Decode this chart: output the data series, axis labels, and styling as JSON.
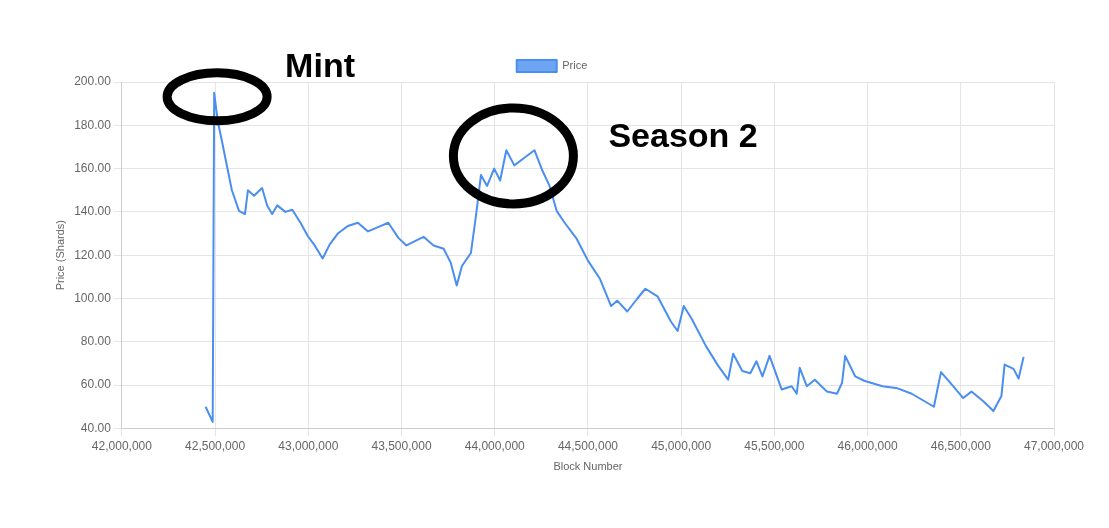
{
  "chart_data": {
    "type": "line",
    "xlabel": "Block Number",
    "ylabel": "Price (Shards)",
    "xlim": [
      42000000,
      47000000
    ],
    "xticks": [
      {
        "value": 42000000,
        "label": "42,000,000"
      },
      {
        "value": 42500000,
        "label": "42,500,000"
      },
      {
        "value": 43000000,
        "label": "43,000,000"
      },
      {
        "value": 43500000,
        "label": "43,500,000"
      },
      {
        "value": 44000000,
        "label": "44,000,000"
      },
      {
        "value": 44500000,
        "label": "44,500,000"
      },
      {
        "value": 45000000,
        "label": "45,000,000"
      },
      {
        "value": 45500000,
        "label": "45,500,000"
      },
      {
        "value": 46000000,
        "label": "46,000,000"
      },
      {
        "value": 46500000,
        "label": "46,500,000"
      },
      {
        "value": 47000000,
        "label": "47,000,000"
      }
    ],
    "ylim": [
      40,
      200
    ],
    "yticks": [
      {
        "value": 40,
        "label": "40.00"
      },
      {
        "value": 60,
        "label": "60.00"
      },
      {
        "value": 80,
        "label": "80.00"
      },
      {
        "value": 100,
        "label": "100.00"
      },
      {
        "value": 120,
        "label": "120.00"
      },
      {
        "value": 140,
        "label": "140.00"
      },
      {
        "value": 160,
        "label": "160.00"
      },
      {
        "value": 180,
        "label": "180.00"
      },
      {
        "value": 200,
        "label": "200.00"
      }
    ],
    "grid": true,
    "legend": "top",
    "marker": "none",
    "line_style": "solid",
    "annotations": [
      {
        "text": "Mint",
        "x": 42500000,
        "y": 195
      },
      {
        "text": "Season 2",
        "x": 44100000,
        "y": 164
      }
    ],
    "series": [
      {
        "name": "Price",
        "color": "#4a8ff0",
        "x": [
          42449000,
          42487000,
          42495000,
          42514000,
          42536000,
          42557000,
          42590000,
          42628000,
          42660000,
          42676000,
          42709000,
          42752000,
          42779000,
          42806000,
          42833000,
          42877000,
          42914000,
          42958000,
          42996000,
          43034000,
          43077000,
          43115000,
          43158000,
          43212000,
          43266000,
          43320000,
          43374000,
          43429000,
          43483000,
          43526000,
          43618000,
          43672000,
          43726000,
          43764000,
          43796000,
          43824000,
          43872000,
          43899000,
          43926000,
          43959000,
          43997000,
          44029000,
          44062000,
          44105000,
          44159000,
          44213000,
          44256000,
          44294000,
          44332000,
          44375000,
          44440000,
          44500000,
          44565000,
          44624000,
          44657000,
          44711000,
          44765000,
          44808000,
          44873000,
          44944000,
          44981000,
          45014000,
          45057000,
          45133000,
          45198000,
          45252000,
          45279000,
          45328000,
          45371000,
          45404000,
          45436000,
          45474000,
          45539000,
          45593000,
          45620000,
          45636000,
          45674000,
          45717000,
          45782000,
          45836000,
          45863000,
          45880000,
          45934000,
          45982000,
          46080000,
          46161000,
          46237000,
          46356000,
          46378000,
          46394000,
          46459000,
          46513000,
          46557000,
          46621000,
          46675000,
          46718000,
          46735000,
          46783000,
          46810000,
          46826000,
          46837000
        ],
        "values": [
          50,
          43,
          195,
          182,
          173,
          164,
          150,
          140.5,
          139,
          150,
          147.5,
          151,
          143,
          139,
          143,
          140,
          141,
          135,
          129,
          124.5,
          118.5,
          125,
          130,
          133.5,
          135,
          131,
          133,
          135,
          128,
          124.5,
          128.5,
          124.5,
          123,
          116.5,
          106,
          115,
          121,
          138,
          157,
          152,
          160,
          154.5,
          168.5,
          161.5,
          165,
          168.5,
          159,
          152,
          140.5,
          135,
          127.5,
          117.5,
          109,
          96.5,
          99,
          94,
          100,
          104.5,
          101,
          89.5,
          85,
          96.5,
          90.5,
          78,
          69,
          62.5,
          74.5,
          66.5,
          65.5,
          71,
          64,
          73.5,
          58,
          59.5,
          56,
          68,
          59.5,
          62.5,
          57,
          56,
          61,
          73.5,
          64,
          62,
          59.5,
          58.5,
          56,
          50,
          59.5,
          66,
          59.5,
          54,
          57,
          52.5,
          48,
          55,
          69.5,
          67.5,
          63,
          69,
          73
        ]
      }
    ]
  }
}
